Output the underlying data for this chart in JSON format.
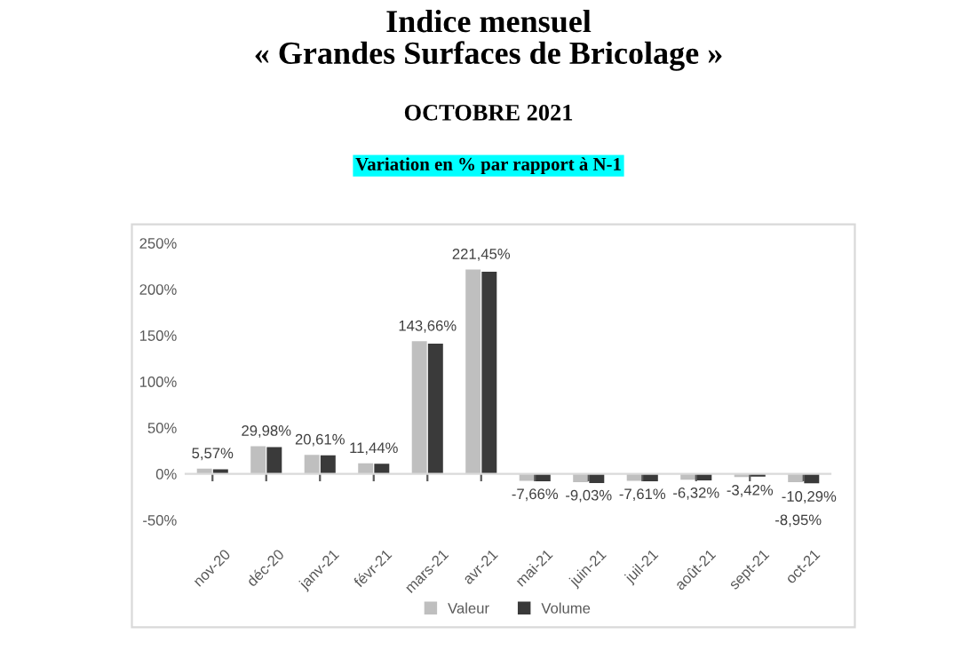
{
  "chart_data": {
    "type": "bar",
    "title": "Indice mensuel\n« Grandes Surfaces de Bricolage »",
    "subtitle": "OCTOBRE 2021",
    "annotations": [
      "Variation en % par rapport à N-1"
    ],
    "categories": [
      "nov-20",
      "déc-20",
      "janv-21",
      "févr-21",
      "mars-21",
      "avr-21",
      "mai-21",
      "juin-21",
      "juil-21",
      "août-21",
      "sept-21",
      "oct-21"
    ],
    "series": [
      {
        "name": "Valeur",
        "color": "#bfbfbf",
        "values": [
          5.57,
          29.98,
          20.61,
          11.44,
          143.66,
          221.45,
          -7.66,
          -9.03,
          -7.61,
          -6.32,
          -3.42,
          -8.95
        ],
        "value_labels": [
          "5,57%",
          "29,98%",
          "20,61%",
          "11,44%",
          "143,66%",
          "221,45%",
          "-7,66%",
          "-9,03%",
          "-7,61%",
          "-6,32%",
          "-3,42%",
          "-8,95%"
        ]
      },
      {
        "name": "Volume",
        "color": "#3a3a3a",
        "values": [
          5,
          29,
          20,
          11,
          141,
          219,
          -8,
          -10,
          -8,
          -7,
          -3,
          -10.29
        ],
        "value_labels": [
          null,
          null,
          null,
          null,
          null,
          null,
          null,
          null,
          null,
          null,
          null,
          "-10,29%"
        ]
      }
    ],
    "ylim": [
      -50,
      250
    ],
    "yticks": [
      {
        "value": -50,
        "label": "-50%"
      },
      {
        "value": 0,
        "label": "0%"
      },
      {
        "value": 50,
        "label": "50%"
      },
      {
        "value": 100,
        "label": "100%"
      },
      {
        "value": 150,
        "label": "150%"
      },
      {
        "value": 200,
        "label": "200%"
      },
      {
        "value": 250,
        "label": "250%"
      }
    ],
    "legend": "bottom"
  }
}
